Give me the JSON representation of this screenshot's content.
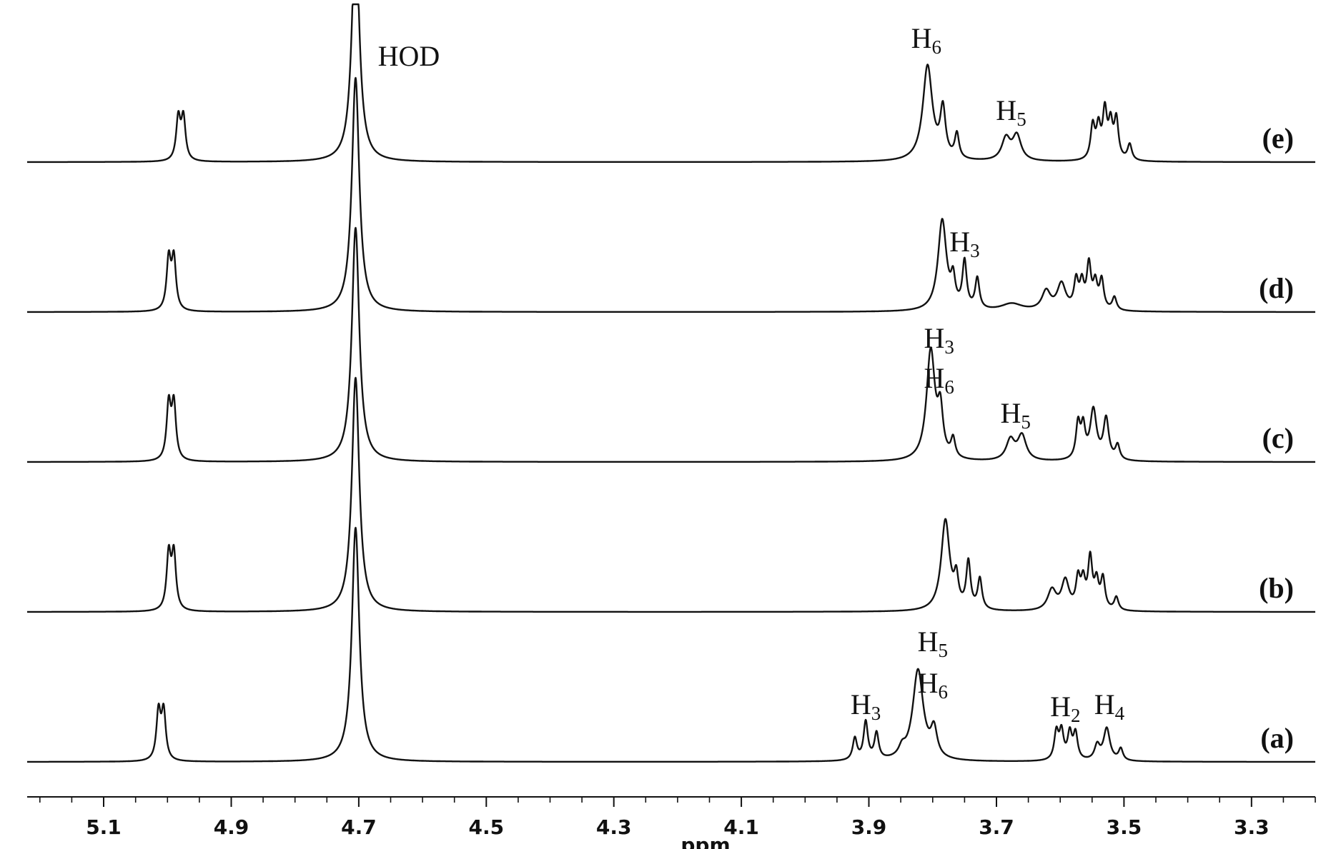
{
  "chart_data": {
    "type": "line",
    "xlabel": "ppm",
    "x_ticks": [
      "5.1",
      "4.9",
      "4.7",
      "4.5",
      "4.3",
      "4.1",
      "3.9",
      "3.7",
      "3.5",
      "3.3"
    ],
    "x_range_ppm": [
      5.22,
      3.2
    ],
    "x_reversed": true,
    "series": [
      {
        "name": "(e)",
        "peaks": [
          {
            "ppm": 4.983,
            "height": 0.29,
            "width": 0.004
          },
          {
            "ppm": 4.975,
            "height": 0.29,
            "width": 0.004
          },
          {
            "ppm": 4.705,
            "height": 1.6,
            "width": 0.007
          },
          {
            "ppm": 3.808,
            "height": 0.65,
            "width": 0.009
          },
          {
            "ppm": 3.784,
            "height": 0.33,
            "width": 0.005
          },
          {
            "ppm": 3.762,
            "height": 0.17,
            "width": 0.004
          },
          {
            "ppm": 3.685,
            "height": 0.15,
            "width": 0.008
          },
          {
            "ppm": 3.668,
            "height": 0.17,
            "width": 0.008
          },
          {
            "ppm": 3.549,
            "height": 0.23,
            "width": 0.004
          },
          {
            "ppm": 3.54,
            "height": 0.21,
            "width": 0.004
          },
          {
            "ppm": 3.53,
            "height": 0.32,
            "width": 0.004
          },
          {
            "ppm": 3.521,
            "height": 0.23,
            "width": 0.004
          },
          {
            "ppm": 3.512,
            "height": 0.27,
            "width": 0.004
          },
          {
            "ppm": 3.491,
            "height": 0.11,
            "width": 0.004
          }
        ]
      },
      {
        "name": "(d)",
        "peaks": [
          {
            "ppm": 4.998,
            "height": 0.35,
            "width": 0.004
          },
          {
            "ppm": 4.99,
            "height": 0.35,
            "width": 0.004
          },
          {
            "ppm": 4.705,
            "height": 1.6,
            "width": 0.007
          },
          {
            "ppm": 3.785,
            "height": 0.62,
            "width": 0.008
          },
          {
            "ppm": 3.768,
            "height": 0.18,
            "width": 0.004
          },
          {
            "ppm": 3.75,
            "height": 0.32,
            "width": 0.004
          },
          {
            "ppm": 3.73,
            "height": 0.21,
            "width": 0.004
          },
          {
            "ppm": 3.676,
            "height": 0.05,
            "width": 0.02
          },
          {
            "ppm": 3.622,
            "height": 0.13,
            "width": 0.008
          },
          {
            "ppm": 3.598,
            "height": 0.18,
            "width": 0.008
          },
          {
            "ppm": 3.575,
            "height": 0.19,
            "width": 0.004
          },
          {
            "ppm": 3.566,
            "height": 0.17,
            "width": 0.004
          },
          {
            "ppm": 3.555,
            "height": 0.3,
            "width": 0.004
          },
          {
            "ppm": 3.545,
            "height": 0.17,
            "width": 0.004
          },
          {
            "ppm": 3.535,
            "height": 0.2,
            "width": 0.004
          },
          {
            "ppm": 3.515,
            "height": 0.09,
            "width": 0.004
          }
        ]
      },
      {
        "name": "(c)",
        "peaks": [
          {
            "ppm": 4.998,
            "height": 0.38,
            "width": 0.004
          },
          {
            "ppm": 4.99,
            "height": 0.38,
            "width": 0.004
          },
          {
            "ppm": 4.705,
            "height": 1.6,
            "width": 0.007
          },
          {
            "ppm": 3.803,
            "height": 0.75,
            "width": 0.008
          },
          {
            "ppm": 3.788,
            "height": 0.3,
            "width": 0.005
          },
          {
            "ppm": 3.768,
            "height": 0.13,
            "width": 0.004
          },
          {
            "ppm": 3.678,
            "height": 0.14,
            "width": 0.008
          },
          {
            "ppm": 3.66,
            "height": 0.17,
            "width": 0.008
          },
          {
            "ppm": 3.572,
            "height": 0.24,
            "width": 0.004
          },
          {
            "ppm": 3.564,
            "height": 0.21,
            "width": 0.004
          },
          {
            "ppm": 3.548,
            "height": 0.34,
            "width": 0.006
          },
          {
            "ppm": 3.528,
            "height": 0.28,
            "width": 0.005
          },
          {
            "ppm": 3.51,
            "height": 0.1,
            "width": 0.004
          }
        ]
      },
      {
        "name": "(b)",
        "peaks": [
          {
            "ppm": 4.998,
            "height": 0.38,
            "width": 0.004
          },
          {
            "ppm": 4.99,
            "height": 0.38,
            "width": 0.004
          },
          {
            "ppm": 4.705,
            "height": 1.6,
            "width": 0.007
          },
          {
            "ppm": 3.78,
            "height": 0.62,
            "width": 0.008
          },
          {
            "ppm": 3.763,
            "height": 0.19,
            "width": 0.004
          },
          {
            "ppm": 3.744,
            "height": 0.32,
            "width": 0.004
          },
          {
            "ppm": 3.726,
            "height": 0.21,
            "width": 0.004
          },
          {
            "ppm": 3.613,
            "height": 0.14,
            "width": 0.008
          },
          {
            "ppm": 3.592,
            "height": 0.2,
            "width": 0.007
          },
          {
            "ppm": 3.572,
            "height": 0.2,
            "width": 0.004
          },
          {
            "ppm": 3.564,
            "height": 0.18,
            "width": 0.004
          },
          {
            "ppm": 3.553,
            "height": 0.34,
            "width": 0.004
          },
          {
            "ppm": 3.543,
            "height": 0.18,
            "width": 0.004
          },
          {
            "ppm": 3.533,
            "height": 0.21,
            "width": 0.004
          },
          {
            "ppm": 3.512,
            "height": 0.09,
            "width": 0.004
          }
        ]
      },
      {
        "name": "(a)",
        "peaks": [
          {
            "ppm": 5.014,
            "height": 0.33,
            "width": 0.004
          },
          {
            "ppm": 5.006,
            "height": 0.33,
            "width": 0.004
          },
          {
            "ppm": 4.705,
            "height": 1.6,
            "width": 0.007
          },
          {
            "ppm": 3.922,
            "height": 0.15,
            "width": 0.004
          },
          {
            "ppm": 3.905,
            "height": 0.26,
            "width": 0.004
          },
          {
            "ppm": 3.888,
            "height": 0.18,
            "width": 0.004
          },
          {
            "ppm": 3.848,
            "height": 0.06,
            "width": 0.006
          },
          {
            "ppm": 3.823,
            "height": 0.62,
            "width": 0.01
          },
          {
            "ppm": 3.798,
            "height": 0.19,
            "width": 0.006
          },
          {
            "ppm": 3.606,
            "height": 0.19,
            "width": 0.004
          },
          {
            "ppm": 3.598,
            "height": 0.19,
            "width": 0.004
          },
          {
            "ppm": 3.585,
            "height": 0.18,
            "width": 0.004
          },
          {
            "ppm": 3.576,
            "height": 0.18,
            "width": 0.004
          },
          {
            "ppm": 3.542,
            "height": 0.1,
            "width": 0.005
          },
          {
            "ppm": 3.527,
            "height": 0.22,
            "width": 0.006
          },
          {
            "ppm": 3.505,
            "height": 0.08,
            "width": 0.004
          }
        ]
      }
    ],
    "annotations": [
      {
        "text": "HOD",
        "spectrum": "(e)",
        "ppm": 4.67
      },
      {
        "text": "H",
        "sub": "6",
        "spectrum": "(e)",
        "ppm": 3.81
      },
      {
        "text": "H",
        "sub": "5",
        "spectrum": "(e)",
        "ppm": 3.677
      },
      {
        "text": "H",
        "sub": "3",
        "spectrum": "(d)",
        "ppm": 3.75
      },
      {
        "text": "H",
        "sub": "3",
        "spectrum": "(c)",
        "ppm": 3.79
      },
      {
        "text": "H",
        "sub": "6",
        "spectrum": "(c)",
        "ppm": 3.79
      },
      {
        "text": "H",
        "sub": "5",
        "spectrum": "(c)",
        "ppm": 3.67
      },
      {
        "text": "H",
        "sub": "5",
        "spectrum": "(a)",
        "ppm": 3.8
      },
      {
        "text": "H",
        "sub": "6",
        "spectrum": "(a)",
        "ppm": 3.8
      },
      {
        "text": "H",
        "sub": "3",
        "spectrum": "(a)",
        "ppm": 3.905
      },
      {
        "text": "H",
        "sub": "2",
        "spectrum": "(a)",
        "ppm": 3.592
      },
      {
        "text": "H",
        "sub": "4",
        "spectrum": "(a)",
        "ppm": 3.523
      }
    ]
  }
}
